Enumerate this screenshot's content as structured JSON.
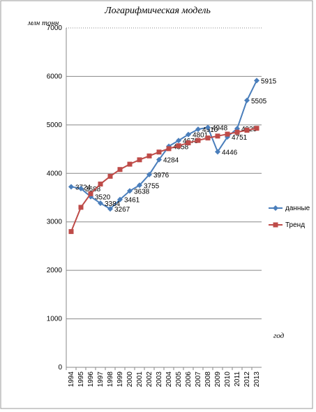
{
  "chart_data": {
    "type": "line",
    "title": "Логарифмическая модель",
    "y_label": "млн тонн",
    "x_label": "год",
    "categories": [
      "1994",
      "1995",
      "1996",
      "1997",
      "1998",
      "1999",
      "2000",
      "2001",
      "2002",
      "2003",
      "2004",
      "2005",
      "2006",
      "2007",
      "2008",
      "2009",
      "2010",
      "2011",
      "2012",
      "2013"
    ],
    "series": [
      {
        "name": "данные",
        "color": "#4a7ebb",
        "marker": "diamond",
        "values": [
          3724,
          3688,
          3520,
          3384,
          3267,
          3461,
          3638,
          3755,
          3976,
          4284,
          4558,
          4678,
          4801,
          4910,
          4948,
          4446,
          4751,
          4925,
          5505,
          5915
        ]
      },
      {
        "name": "Тренд",
        "color": "#be4b48",
        "marker": "square",
        "values": [
          2800,
          3300,
          3580,
          3780,
          3940,
          4080,
          4190,
          4280,
          4360,
          4440,
          4510,
          4570,
          4630,
          4680,
          4730,
          4770,
          4810,
          4850,
          4890,
          4930
        ]
      }
    ],
    "ylim": [
      0,
      7000
    ],
    "yticks": [
      0,
      1000,
      2000,
      3000,
      4000,
      5000,
      6000,
      7000
    ],
    "grid": true,
    "legend": "right"
  }
}
